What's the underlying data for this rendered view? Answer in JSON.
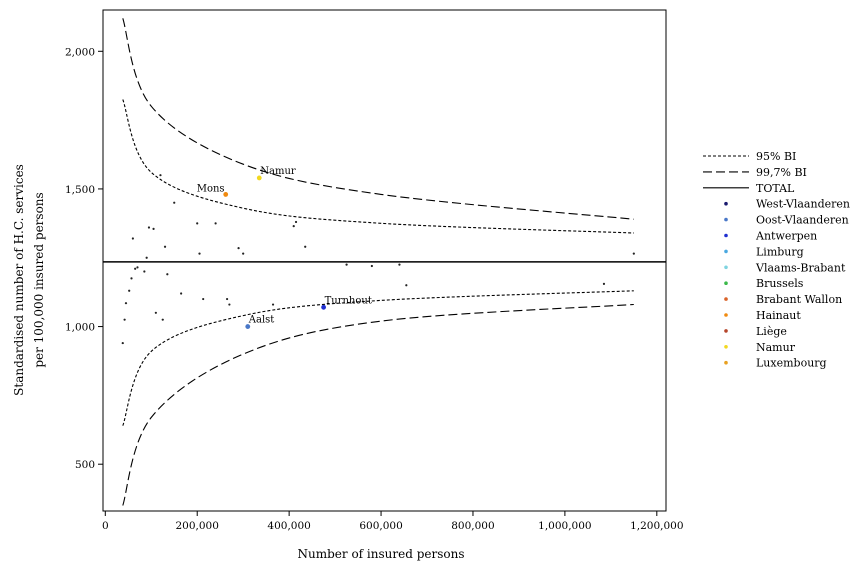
{
  "chart_data": {
    "type": "scatter",
    "title": "",
    "xlabel": "Number of insured persons",
    "ylabel_lines": [
      "Standardised number of H.C. services",
      "per 100,000 insured persons"
    ],
    "xlim": [
      -5000,
      1220000
    ],
    "ylim": [
      330,
      2150
    ],
    "x_ticks": [
      0,
      200000,
      400000,
      600000,
      800000,
      1000000,
      1200000
    ],
    "x_tick_labels": [
      "0",
      "200,000",
      "400,000",
      "600,000",
      "800,000",
      "1,000,000",
      "1,200,000"
    ],
    "y_ticks": [
      500,
      1000,
      1500,
      2000
    ],
    "y_tick_labels": [
      "500",
      "1,000",
      "1,500",
      "2,000"
    ],
    "grid": false,
    "legend_position": "right",
    "total_value": 1235,
    "legend": [
      {
        "label": "95% BI",
        "kind": "line",
        "dash": "3,2",
        "color": "#000000"
      },
      {
        "label": "99,7% BI",
        "kind": "line",
        "dash": "9,4",
        "color": "#000000"
      },
      {
        "label": "TOTAL",
        "kind": "line",
        "dash": "",
        "color": "#000000"
      },
      {
        "label": "West-Vlaanderen",
        "kind": "dot",
        "color": "#1a1a6e"
      },
      {
        "label": "Oost-Vlaanderen",
        "kind": "dot",
        "color": "#4a78c8"
      },
      {
        "label": "Antwerpen",
        "kind": "dot",
        "color": "#1f2fd0"
      },
      {
        "label": "Limburg",
        "kind": "dot",
        "color": "#4aa8e0"
      },
      {
        "label": "Vlaams-Brabant",
        "kind": "dot",
        "color": "#7fd4e0"
      },
      {
        "label": "Brussels",
        "kind": "dot",
        "color": "#3cb94a"
      },
      {
        "label": "Brabant Wallon",
        "kind": "dot",
        "color": "#d9632a"
      },
      {
        "label": "Hainaut",
        "kind": "dot",
        "color": "#f08a10"
      },
      {
        "label": "Liège",
        "kind": "dot",
        "color": "#b5452b"
      },
      {
        "label": "Namur",
        "kind": "dot",
        "color": "#f2d820"
      },
      {
        "label": "Luxembourg",
        "kind": "dot",
        "color": "#e8a020"
      }
    ],
    "series": [
      {
        "name": "West-Vlaanderen",
        "points": [
          [
            38000,
            940
          ],
          [
            52000,
            1130
          ],
          [
            120000,
            1550
          ],
          [
            205000,
            1265
          ]
        ]
      },
      {
        "name": "Oost-Vlaanderen",
        "points": [
          [
            42000,
            1025
          ],
          [
            110000,
            1050
          ],
          [
            310000,
            1000
          ],
          [
            365000,
            1080
          ]
        ]
      },
      {
        "name": "Antwerpen",
        "points": [
          [
            60000,
            1320
          ],
          [
            150000,
            1450
          ],
          [
            475000,
            1070
          ],
          [
            580000,
            1220
          ],
          [
            1150000,
            1265
          ]
        ]
      },
      {
        "name": "Limburg",
        "points": [
          [
            95000,
            1360
          ],
          [
            240000,
            1375
          ],
          [
            410000,
            1365
          ]
        ]
      },
      {
        "name": "Vlaams-Brabant",
        "points": [
          [
            130000,
            1290
          ],
          [
            435000,
            1290
          ],
          [
            640000,
            1225
          ]
        ]
      },
      {
        "name": "Brussels",
        "points": [
          [
            65000,
            1210
          ],
          [
            525000,
            1225
          ]
        ]
      },
      {
        "name": "Brabant Wallon",
        "points": [
          [
            85000,
            1200
          ],
          [
            200000,
            1375
          ]
        ]
      },
      {
        "name": "Hainaut",
        "points": [
          [
            90000,
            1250
          ],
          [
            165000,
            1120
          ],
          [
            262000,
            1480
          ],
          [
            270000,
            1080
          ],
          [
            655000,
            1150
          ]
        ]
      },
      {
        "name": "Liège",
        "points": [
          [
            45000,
            1085
          ],
          [
            125000,
            1025
          ],
          [
            213000,
            1100
          ],
          [
            300000,
            1265
          ],
          [
            1085000,
            1155
          ]
        ]
      },
      {
        "name": "Namur",
        "points": [
          [
            57000,
            1175
          ],
          [
            105000,
            1355
          ],
          [
            290000,
            1285
          ],
          [
            335000,
            1540
          ]
        ]
      },
      {
        "name": "Luxembourg",
        "points": [
          [
            70000,
            1215
          ],
          [
            135000,
            1190
          ],
          [
            265000,
            1100
          ],
          [
            415000,
            1380
          ]
        ]
      }
    ],
    "highlighted_points": [
      {
        "name": "Namur",
        "x": 335000,
        "y": 1540,
        "label": "Namur",
        "color": "#f2d820"
      },
      {
        "name": "Mons",
        "x": 262000,
        "y": 1480,
        "label": "Mons",
        "color": "#f08a10"
      },
      {
        "name": "Turnhout",
        "x": 475000,
        "y": 1070,
        "label": "Turnhout",
        "color": "#1f2fd0"
      },
      {
        "name": "Aalst",
        "x": 310000,
        "y": 1000,
        "label": "Aalst",
        "color": "#4a78c8"
      }
    ],
    "bands": [
      {
        "name": "95% BI",
        "dash": "3,2",
        "upper": [
          [
            38000,
            1825
          ],
          [
            100000,
            1560
          ],
          [
            300000,
            1430
          ],
          [
            600000,
            1375
          ],
          [
            1150000,
            1340
          ]
        ],
        "lower": [
          [
            38000,
            640
          ],
          [
            100000,
            910
          ],
          [
            300000,
            1040
          ],
          [
            600000,
            1095
          ],
          [
            1150000,
            1130
          ]
        ]
      },
      {
        "name": "99,7% BI",
        "dash": "9,4",
        "upper": [
          [
            38000,
            2120
          ],
          [
            100000,
            1800
          ],
          [
            300000,
            1590
          ],
          [
            600000,
            1480
          ],
          [
            1150000,
            1390
          ]
        ],
        "lower": [
          [
            38000,
            350
          ],
          [
            100000,
            670
          ],
          [
            300000,
            900
          ],
          [
            600000,
            1020
          ],
          [
            1150000,
            1080
          ]
        ]
      }
    ]
  }
}
